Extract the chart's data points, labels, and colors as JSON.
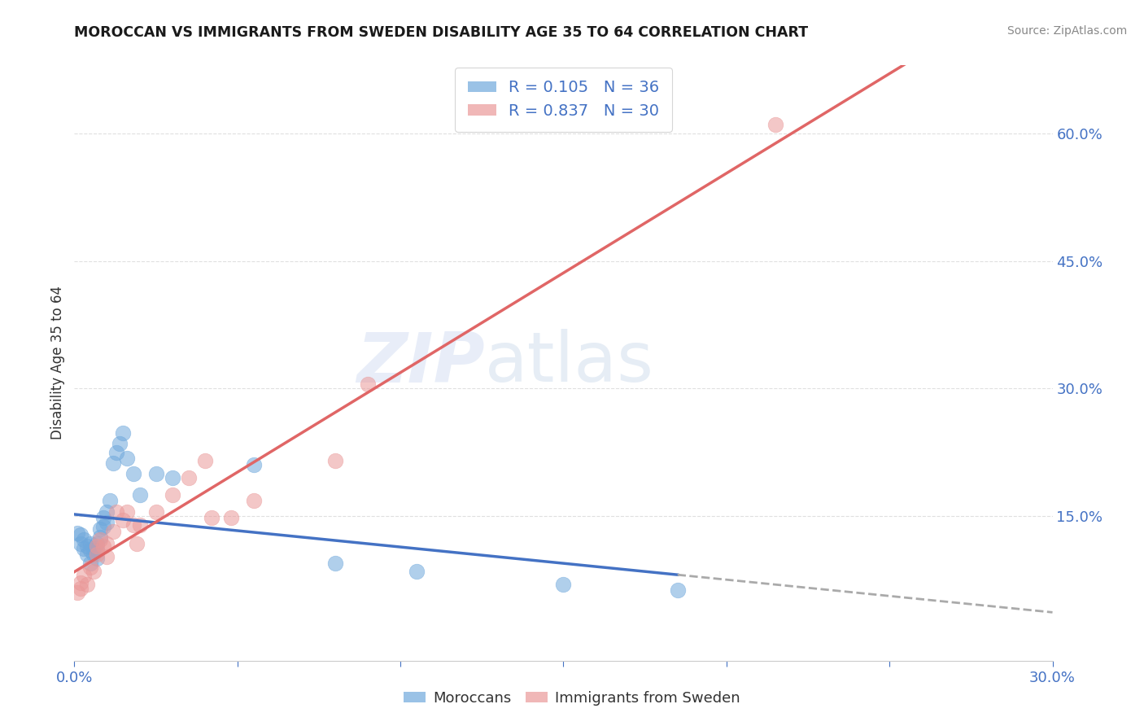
{
  "title": "MOROCCAN VS IMMIGRANTS FROM SWEDEN DISABILITY AGE 35 TO 64 CORRELATION CHART",
  "source": "Source: ZipAtlas.com",
  "tick_color": "#4472c4",
  "ylabel": "Disability Age 35 to 64",
  "xlim": [
    0.0,
    0.3
  ],
  "ylim": [
    -0.02,
    0.68
  ],
  "x_ticks": [
    0.0,
    0.05,
    0.1,
    0.15,
    0.2,
    0.25,
    0.3
  ],
  "x_tick_labels": [
    "0.0%",
    "",
    "",
    "",
    "",
    "",
    "30.0%"
  ],
  "right_yticks": [
    0.15,
    0.3,
    0.45,
    0.6
  ],
  "right_ytick_labels": [
    "15.0%",
    "30.0%",
    "45.0%",
    "60.0%"
  ],
  "grid_yticks": [
    0.15,
    0.3,
    0.45,
    0.6
  ],
  "moroccan_R": 0.105,
  "moroccan_N": 36,
  "sweden_R": 0.837,
  "sweden_N": 30,
  "moroccan_color": "#6fa8dc",
  "sweden_color": "#ea9999",
  "moroccan_line_color": "#4472c4",
  "sweden_line_color": "#e06666",
  "watermark_zip": "ZIP",
  "watermark_atlas": "atlas",
  "legend_label_moroccan": "Moroccans",
  "legend_label_sweden": "Immigrants from Sweden",
  "moroccan_x": [
    0.001,
    0.002,
    0.002,
    0.003,
    0.003,
    0.004,
    0.004,
    0.005,
    0.005,
    0.005,
    0.006,
    0.006,
    0.007,
    0.007,
    0.007,
    0.008,
    0.008,
    0.009,
    0.009,
    0.01,
    0.01,
    0.011,
    0.012,
    0.013,
    0.014,
    0.015,
    0.016,
    0.018,
    0.02,
    0.025,
    0.03,
    0.055,
    0.08,
    0.105,
    0.15,
    0.185
  ],
  "moroccan_y": [
    0.13,
    0.128,
    0.118,
    0.122,
    0.112,
    0.115,
    0.105,
    0.118,
    0.11,
    0.095,
    0.112,
    0.105,
    0.118,
    0.11,
    0.1,
    0.135,
    0.125,
    0.148,
    0.138,
    0.155,
    0.142,
    0.168,
    0.212,
    0.225,
    0.235,
    0.248,
    0.218,
    0.2,
    0.175,
    0.2,
    0.195,
    0.21,
    0.095,
    0.085,
    0.07,
    0.063
  ],
  "sweden_x": [
    0.001,
    0.002,
    0.002,
    0.003,
    0.004,
    0.005,
    0.006,
    0.007,
    0.007,
    0.008,
    0.009,
    0.01,
    0.01,
    0.012,
    0.013,
    0.015,
    0.016,
    0.018,
    0.019,
    0.02,
    0.025,
    0.03,
    0.035,
    0.04,
    0.042,
    0.048,
    0.055,
    0.08,
    0.09,
    0.215
  ],
  "sweden_y": [
    0.06,
    0.065,
    0.072,
    0.08,
    0.07,
    0.09,
    0.085,
    0.105,
    0.115,
    0.122,
    0.115,
    0.102,
    0.118,
    0.132,
    0.155,
    0.145,
    0.155,
    0.14,
    0.118,
    0.14,
    0.155,
    0.175,
    0.195,
    0.215,
    0.148,
    0.148,
    0.168,
    0.215,
    0.305,
    0.61
  ],
  "dashed_line_color": "#aaaaaa",
  "grid_color": "#e0e0e0",
  "blue_trend_x_start": 0.0,
  "blue_trend_x_end_solid": 0.185,
  "blue_trend_x_end_dash": 0.3,
  "pink_trend_x_start": 0.0,
  "pink_trend_x_end": 0.3
}
